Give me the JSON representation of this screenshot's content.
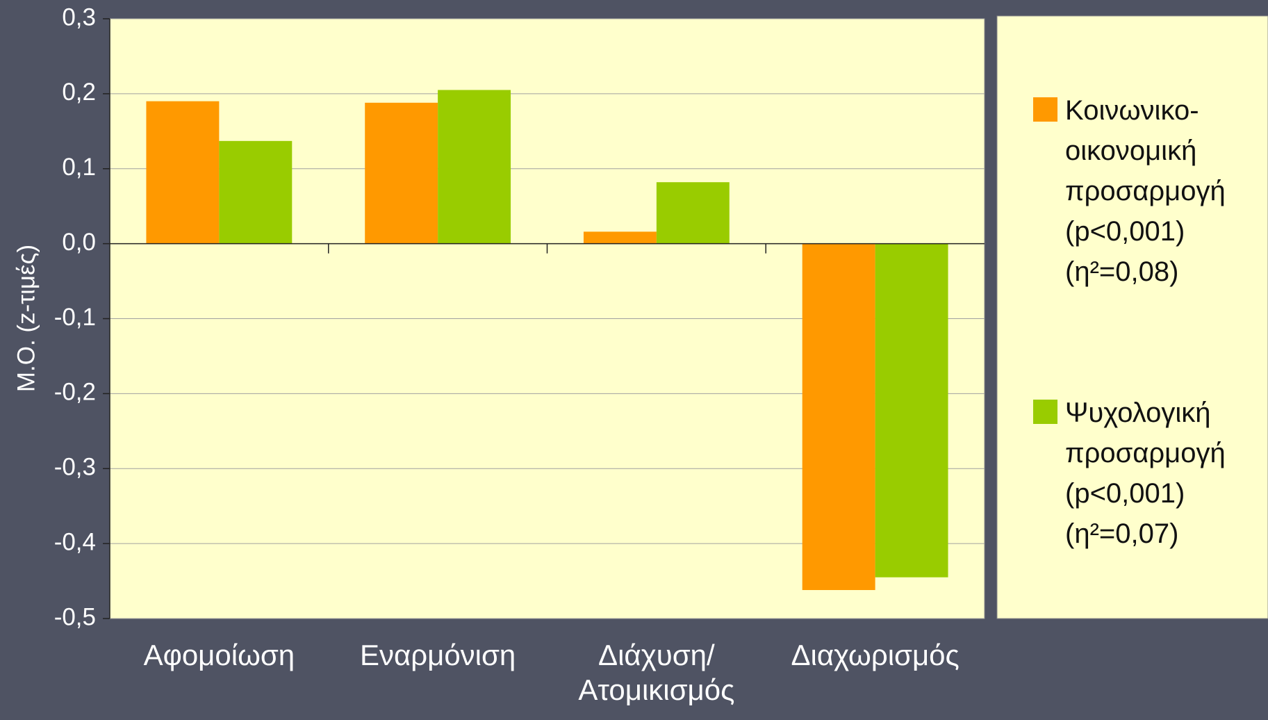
{
  "chart_data": {
    "type": "bar",
    "ylabel": "Μ.Ο. (z-τιμές)",
    "categories": [
      "Αφομοίωση",
      "Εναρμόνιση",
      "Διάχυση/\nΑτομικισμός",
      "Διαχωρισμός"
    ],
    "series": [
      {
        "name": "Κοινωνικο-οικονομική προσαρμογή (p<0,001) (η²=0,08)",
        "color": "#ff9900",
        "values": [
          0.19,
          0.188,
          0.016,
          -0.462
        ]
      },
      {
        "name": "Ψυχολογική προσαρμογή (p<0,001) (η²=0,07)",
        "color": "#99cc00",
        "values": [
          0.137,
          0.205,
          0.082,
          -0.445
        ]
      }
    ],
    "ylim": [
      -0.5,
      0.3
    ],
    "yticks": [
      {
        "value": 0.3,
        "label": "0,3"
      },
      {
        "value": 0.2,
        "label": "0,2"
      },
      {
        "value": 0.1,
        "label": "0,1"
      },
      {
        "value": 0,
        "label": "0,0"
      },
      {
        "value": -0.1,
        "label": "-0,1"
      },
      {
        "value": -0.2,
        "label": "-0,2"
      },
      {
        "value": -0.3,
        "label": "-0,3"
      },
      {
        "value": -0.4,
        "label": "-0,4"
      },
      {
        "value": -0.5,
        "label": "-0,5"
      }
    ],
    "grid": true,
    "legend": "right"
  }
}
